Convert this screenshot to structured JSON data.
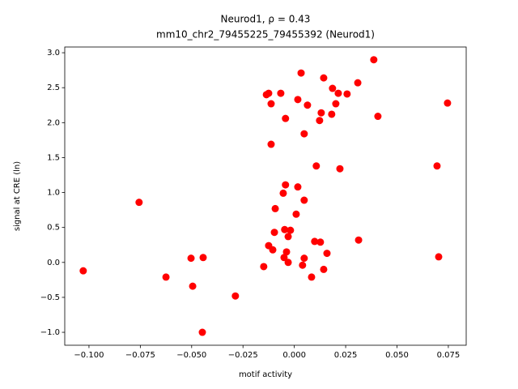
{
  "chart_data": {
    "type": "scatter",
    "title": "Neurod1, ρ = 0.43",
    "subtitle": "mm10_chr2_79455225_79455392 (Neurod1)",
    "xlabel": "motif activity",
    "ylabel": "signal at CRE (ln)",
    "color": "#ff0000",
    "xlim": [
      -0.1118,
      0.0837
    ],
    "ylim": [
      -1.185,
      3.082
    ],
    "xticks": [
      {
        "value": -0.1,
        "label": "−0.100"
      },
      {
        "value": -0.075,
        "label": "−0.075"
      },
      {
        "value": -0.05,
        "label": "−0.050"
      },
      {
        "value": -0.025,
        "label": "−0.025"
      },
      {
        "value": 0,
        "label": "0.000"
      },
      0.025,
      {
        "value": 0.05,
        "label": "0.050"
      },
      0.075
    ],
    "yticks": [
      {
        "value": -1,
        "label": "−1.0"
      },
      {
        "value": -0.5,
        "label": "−0.5"
      },
      {
        "value": 0,
        "label": "0.0"
      },
      0.5,
      {
        "value": 1,
        "label": "1.0"
      },
      1.5,
      {
        "value": 2,
        "label": "2.0"
      },
      2.5,
      {
        "value": 3,
        "label": "3.0"
      }
    ],
    "x": [
      0.0387,
      0.0033,
      0.0143,
      0.0309,
      0.0186,
      -0.0136,
      -0.0125,
      -0.0066,
      0.0257,
      0.0214,
      0.0017,
      -0.0113,
      0.0064,
      0.0202,
      0.0746,
      0.0131,
      0.0182,
      0.0407,
      -0.0043,
      0.0123,
      0.0048,
      -0.0113,
      0.0107,
      0.0695,
      0.0222,
      -0.0043,
      0.0017,
      -0.0054,
      0.0048,
      -0.0756,
      -0.0093,
      0.0009,
      -0.0047,
      -0.0019,
      -0.0097,
      -0.003,
      -0.0125,
      0.0099,
      0.0127,
      0.0313,
      -0.0105,
      -0.0038,
      0.0159,
      -0.005,
      0.0048,
      0.0703,
      -0.0444,
      -0.0503,
      -0.003,
      0.004,
      -0.0149,
      0.0143,
      -0.1028,
      -0.0625,
      0.0084,
      -0.0495,
      -0.0287,
      -0.0448
    ],
    "y": [
      2.9,
      2.71,
      2.64,
      2.57,
      2.49,
      2.4,
      2.42,
      2.42,
      2.41,
      2.42,
      2.33,
      2.27,
      2.25,
      2.27,
      2.28,
      2.14,
      2.12,
      2.09,
      2.06,
      2.03,
      1.84,
      1.69,
      1.38,
      1.38,
      1.34,
      1.11,
      1.08,
      0.99,
      0.89,
      0.86,
      0.77,
      0.69,
      0.47,
      0.46,
      0.43,
      0.37,
      0.24,
      0.3,
      0.29,
      0.32,
      0.18,
      0.15,
      0.13,
      0.07,
      0.06,
      0.08,
      0.07,
      0.06,
      0.0,
      -0.04,
      -0.06,
      -0.1,
      -0.12,
      -0.21,
      -0.21,
      -0.34,
      -0.48,
      -1.0
    ]
  }
}
